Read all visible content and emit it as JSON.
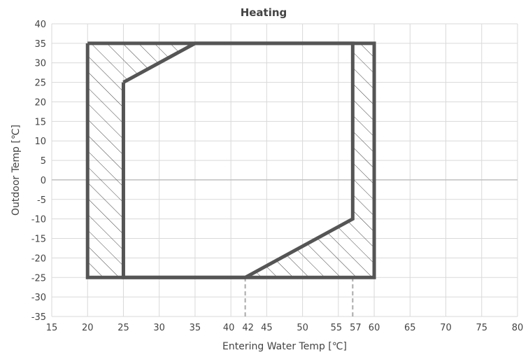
{
  "chart_data": {
    "type": "area",
    "title": "Heating",
    "xlabel": "Entering Water Temp [℃]",
    "ylabel": "Outdoor Temp [℃]",
    "xlim": [
      15,
      80
    ],
    "ylim": [
      -35,
      40
    ],
    "x_ticks": [
      15,
      20,
      25,
      30,
      35,
      40,
      42,
      45,
      50,
      55,
      57,
      60,
      65,
      70,
      75,
      80
    ],
    "y_ticks": [
      40,
      35,
      30,
      25,
      20,
      15,
      10,
      5,
      0,
      -5,
      -10,
      -15,
      -20,
      -25,
      -30,
      -35
    ],
    "grid": true,
    "outer_envelope": {
      "x": [
        20,
        60,
        60,
        20,
        20
      ],
      "y": [
        35,
        35,
        -25,
        -25,
        35
      ]
    },
    "inner_envelope": {
      "x": [
        25,
        35,
        57,
        57,
        42,
        25,
        25
      ],
      "y": [
        25,
        35,
        35,
        -10,
        -25,
        -25,
        25
      ]
    },
    "reference_lines_x": [
      42,
      57
    ],
    "colors": {
      "envelope": "#555555",
      "grid": "#d9d9d9",
      "zero_line": "#bfbfbf",
      "reference": "#aaaaaa"
    }
  }
}
